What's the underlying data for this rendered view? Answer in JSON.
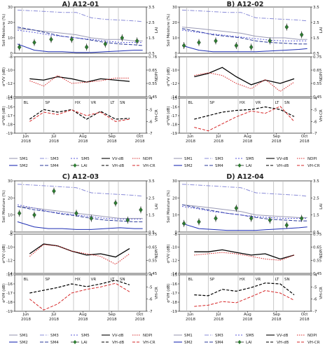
{
  "figure": {
    "y_axis_labels": {
      "moisture_left": "Soil Moisture (%)",
      "moisture_right": "LAI",
      "vv_left": "σ°VV (dB)",
      "vv_right": "NDPI",
      "vh_left": "σ°VH (dB)",
      "vh_right": "VH-CR"
    },
    "x_tick_labels": [
      "Jun\n2018",
      "Jul\n2018",
      "Aug\n2018",
      "Sep\n2018",
      "Oct\n2018"
    ],
    "stage_labels": [
      "BL",
      "SP",
      "HX",
      "VR",
      "LT",
      "SN"
    ],
    "legend_entries": {
      "moisture": [
        "SM1",
        "SM2",
        "SM3",
        "SM4",
        "SM5",
        "LAI"
      ],
      "backscatter": [
        "VV-dB",
        "VH-dB",
        "NDPI",
        "VH-CR"
      ]
    },
    "colors": {
      "sm1": "#9a9ab5",
      "sm2": "#1f2fb4",
      "sm3": "#8a8cd8",
      "sm4": "#2a3a9a",
      "sm5": "#5a5ad8",
      "lai_marker": "#2e7d32",
      "vv": "#000000",
      "vh": "#000000",
      "ndpi": "#d62728",
      "vhcr": "#d62728"
    }
  },
  "chart_data": [
    {
      "type": "line",
      "title": "A) A12-01",
      "x_date_ticks": [
        "2018-06-01",
        "2018-07-01",
        "2018-08-01",
        "2018-09-01",
        "2018-10-01"
      ],
      "stage_dates": [
        "2018-05-28",
        "2018-06-20",
        "2018-07-22",
        "2018-08-08",
        "2018-08-29",
        "2018-09-08"
      ],
      "moisture": {
        "ylim": [
          0,
          30
        ],
        "yticks": [
          0,
          10,
          20,
          30
        ],
        "y2lim": [
          0.5,
          3.5
        ],
        "y2ticks": [
          0.5,
          1.5,
          2.5,
          3.5
        ],
        "x": [
          "2018-05-23",
          "2018-06-10",
          "2018-06-25",
          "2018-07-10",
          "2018-07-25",
          "2018-08-10",
          "2018-08-25",
          "2018-09-10",
          "2018-09-25",
          "2018-10-04"
        ],
        "series": [
          {
            "name": "SM1",
            "values": [
              16,
              15,
              14,
              13,
              12,
              10,
              9,
              9,
              8,
              8
            ]
          },
          {
            "name": "SM2",
            "values": [
              6,
              2,
              1,
              1,
              0.5,
              0.5,
              1,
              1.5,
              2,
              2
            ]
          },
          {
            "name": "SM3",
            "values": [
              28,
              27.5,
              27,
              26.5,
              26.5,
              23,
              22,
              21.5,
              21,
              20.5
            ]
          },
          {
            "name": "SM4",
            "values": [
              17,
              15,
              13,
              11,
              10,
              8.5,
              7,
              6,
              5.5,
              5
            ]
          },
          {
            "name": "SM5",
            "values": [
              15,
              13.5,
              12,
              11,
              10,
              9,
              8,
              7,
              7,
              7
            ]
          }
        ],
        "lai": {
          "x": [
            "2018-05-25",
            "2018-06-10",
            "2018-06-28",
            "2018-07-20",
            "2018-08-05",
            "2018-08-25",
            "2018-09-12",
            "2018-09-28"
          ],
          "values": [
            0.9,
            1.2,
            1.4,
            1.4,
            0.9,
            1.1,
            1.5,
            1.3
          ]
        }
      },
      "vv": {
        "ylim": [
          -14,
          -8
        ],
        "yticks": [
          -14,
          -12,
          -10,
          -8
        ],
        "y2lim": [
          0.45,
          0.75
        ],
        "y2ticks": [
          0.45,
          0.55,
          0.65,
          0.75
        ],
        "x": [
          "2018-06-05",
          "2018-06-20",
          "2018-07-05",
          "2018-07-20",
          "2018-08-05",
          "2018-08-20",
          "2018-09-05",
          "2018-09-20"
        ],
        "vv_db": [
          -11.3,
          -11.5,
          -11.0,
          -11.3,
          -11.8,
          -11.3,
          -11.5,
          -11.7
        ],
        "ndpi": [
          0.57,
          0.53,
          0.61,
          0.55,
          0.56,
          0.57,
          0.59,
          0.59
        ]
      },
      "vh": {
        "ylim": [
          -19,
          -15
        ],
        "yticks": [
          -19,
          -18,
          -17,
          -16,
          -15
        ],
        "y2lim": [
          -7,
          -4
        ],
        "y2ticks": [
          -7,
          -6,
          -5,
          -4
        ],
        "x": [
          "2018-06-05",
          "2018-06-20",
          "2018-07-05",
          "2018-07-20",
          "2018-08-05",
          "2018-08-20",
          "2018-09-05",
          "2018-09-20"
        ],
        "vh_db": [
          -17.4,
          -16.3,
          -16.6,
          -16.3,
          -17.4,
          -16.5,
          -17.4,
          -17.3
        ],
        "vhcr": [
          -6.0,
          -5.2,
          -5.4,
          -5.0,
          -5.5,
          -5.2,
          -6.0,
          -5.8
        ]
      }
    },
    {
      "type": "line",
      "title": "B) A12-02",
      "x_date_ticks": [
        "2018-06-01",
        "2018-07-01",
        "2018-08-01",
        "2018-09-01",
        "2018-10-01"
      ],
      "stage_dates": [
        "2018-05-28",
        "2018-06-20",
        "2018-07-22",
        "2018-08-08",
        "2018-08-29",
        "2018-09-08"
      ],
      "moisture": {
        "ylim": [
          0,
          30
        ],
        "yticks": [
          0,
          10,
          20,
          30
        ],
        "y2lim": [
          0.5,
          3.5
        ],
        "y2ticks": [
          0.5,
          1.5,
          2.5,
          3.5
        ],
        "x": [
          "2018-05-23",
          "2018-06-10",
          "2018-06-25",
          "2018-07-10",
          "2018-07-25",
          "2018-08-10",
          "2018-08-25",
          "2018-09-10",
          "2018-09-25",
          "2018-10-04"
        ],
        "series": [
          {
            "name": "SM1",
            "values": [
              17,
              16,
              15,
              14,
              13,
              11,
              10,
              10,
              9,
              9
            ]
          },
          {
            "name": "SM2",
            "values": [
              5,
              2,
              1,
              1,
              1,
              1,
              1.5,
              2,
              2.5,
              3
            ]
          },
          {
            "name": "SM3",
            "values": [
              28,
              27.5,
              27,
              26.5,
              26.5,
              23,
              22.5,
              22,
              21.5,
              21
            ]
          },
          {
            "name": "SM4",
            "values": [
              16,
              14,
              12,
              11,
              10,
              8,
              7,
              6.5,
              6,
              6
            ]
          },
          {
            "name": "SM5",
            "values": [
              15,
              13.5,
              12.5,
              11.5,
              10.5,
              9.5,
              8.5,
              8,
              8,
              8
            ]
          }
        ],
        "lai": {
          "x": [
            "2018-05-25",
            "2018-06-10",
            "2018-06-28",
            "2018-07-20",
            "2018-08-05",
            "2018-08-25",
            "2018-09-12",
            "2018-09-28"
          ],
          "values": [
            1.0,
            1.2,
            1.3,
            1.0,
            0.9,
            1.3,
            2.2,
            1.7
          ]
        }
      },
      "vv": {
        "ylim": [
          -14,
          -8
        ],
        "yticks": [
          -14,
          -12,
          -10,
          -8
        ],
        "y2lim": [
          0.45,
          0.75
        ],
        "y2ticks": [
          0.45,
          0.55,
          0.65,
          0.75
        ],
        "x": [
          "2018-06-05",
          "2018-06-20",
          "2018-07-05",
          "2018-07-20",
          "2018-08-05",
          "2018-08-20",
          "2018-09-05",
          "2018-09-20"
        ],
        "vv_db": [
          -11.0,
          -10.5,
          -9.6,
          -11.0,
          -12.2,
          -11.5,
          -12.0,
          -11.3
        ],
        "ndpi": [
          0.61,
          0.63,
          0.61,
          0.55,
          0.51,
          0.58,
          0.49,
          0.56
        ]
      },
      "vh": {
        "ylim": [
          -19,
          -15
        ],
        "yticks": [
          -19,
          -18,
          -17,
          -16,
          -15
        ],
        "y2lim": [
          -7,
          -4
        ],
        "y2ticks": [
          -7,
          -6,
          -5,
          -4
        ],
        "x": [
          "2018-06-05",
          "2018-06-20",
          "2018-07-05",
          "2018-07-20",
          "2018-08-05",
          "2018-08-20",
          "2018-09-05",
          "2018-09-20"
        ],
        "vh_db": [
          -17.4,
          -17.0,
          -16.6,
          -16.4,
          -16.3,
          -16.0,
          -16.3,
          -17.1
        ],
        "vhcr": [
          -6.5,
          -6.8,
          -6.2,
          -5.6,
          -5.1,
          -5.3,
          -4.7,
          -6.0
        ]
      }
    },
    {
      "type": "line",
      "title": "C) A12-03",
      "x_date_ticks": [
        "2018-06-01",
        "2018-07-01",
        "2018-08-01",
        "2018-09-01",
        "2018-10-01"
      ],
      "stage_dates": [
        "2018-05-28",
        "2018-06-20",
        "2018-07-22",
        "2018-08-08",
        "2018-08-29",
        "2018-09-08"
      ],
      "moisture": {
        "ylim": [
          0,
          30
        ],
        "yticks": [
          0,
          10,
          20,
          30
        ],
        "y2lim": [
          0.5,
          3.5
        ],
        "y2ticks": [
          0.5,
          1.5,
          2.5,
          3.5
        ],
        "x": [
          "2018-05-23",
          "2018-06-10",
          "2018-06-25",
          "2018-07-10",
          "2018-07-25",
          "2018-08-10",
          "2018-08-25",
          "2018-09-10",
          "2018-09-25",
          "2018-10-04"
        ],
        "series": [
          {
            "name": "SM1",
            "values": [
              15,
              14,
              13,
              12,
              11,
              10,
              9,
              8,
              8,
              8
            ]
          },
          {
            "name": "SM2",
            "values": [
              6,
              3,
              2,
              2,
              1.5,
              1.5,
              2,
              2.5,
              2,
              2
            ]
          },
          {
            "name": "SM3",
            "values": [
              28,
              27.5,
              27,
              26.5,
              26,
              23,
              22.5,
              22,
              21.5,
              21
            ]
          },
          {
            "name": "SM4",
            "values": [
              15,
              13,
              12,
              10.5,
              9.5,
              8,
              7,
              6.5,
              6,
              6
            ]
          },
          {
            "name": "SM5",
            "values": [
              16,
              14,
              12,
              11,
              10,
              9,
              8,
              7.5,
              7.5,
              7.5
            ]
          }
        ],
        "lai": {
          "x": [
            "2018-05-25",
            "2018-06-10",
            "2018-07-01",
            "2018-07-25",
            "2018-08-10",
            "2018-09-05",
            "2018-09-18",
            "2018-10-02"
          ],
          "values": [
            1.6,
            1.5,
            2.9,
            1.6,
            1.3,
            2.2,
            1.2,
            1.8
          ]
        }
      },
      "vv": {
        "ylim": [
          -14,
          -8
        ],
        "yticks": [
          -14,
          -12,
          -10,
          -8
        ],
        "y2lim": [
          0.45,
          0.75
        ],
        "y2ticks": [
          0.45,
          0.55,
          0.65,
          0.75
        ],
        "x": [
          "2018-06-05",
          "2018-06-20",
          "2018-07-05",
          "2018-07-20",
          "2018-08-05",
          "2018-08-20",
          "2018-09-05",
          "2018-09-20"
        ],
        "vv_db": [
          -11.0,
          -9.5,
          -9.8,
          -10.6,
          -11.2,
          -11.0,
          -11.5,
          -10.2
        ],
        "ndpi": [
          0.58,
          0.67,
          0.66,
          0.62,
          0.6,
          0.58,
          0.52,
          0.6
        ]
      },
      "vh": {
        "ylim": [
          -19,
          -15
        ],
        "yticks": [
          -19,
          -18,
          -17,
          -16,
          -15
        ],
        "y2lim": [
          -7,
          -4
        ],
        "y2ticks": [
          -7,
          -6,
          -5,
          -4
        ],
        "x": [
          "2018-06-05",
          "2018-06-20",
          "2018-07-05",
          "2018-07-20",
          "2018-08-05",
          "2018-08-20",
          "2018-09-05",
          "2018-09-20"
        ],
        "vh_db": [
          -17.0,
          -16.7,
          -16.4,
          -16.0,
          -16.3,
          -16.0,
          -15.6,
          -16.1
        ],
        "vhcr": [
          -6.0,
          -6.9,
          -6.4,
          -5.5,
          -5.2,
          -5.0,
          -4.7,
          -5.4
        ]
      }
    },
    {
      "type": "line",
      "title": "D) A12-04",
      "x_date_ticks": [
        "2018-06-01",
        "2018-07-01",
        "2018-08-01",
        "2018-09-01",
        "2018-10-01"
      ],
      "stage_dates": [
        "2018-05-28",
        "2018-06-20",
        "2018-07-22",
        "2018-08-08",
        "2018-08-29",
        "2018-09-08"
      ],
      "moisture": {
        "ylim": [
          0,
          30
        ],
        "yticks": [
          0,
          10,
          20,
          30
        ],
        "y2lim": [
          0.5,
          3.5
        ],
        "y2ticks": [
          0.5,
          1.5,
          2.5,
          3.5
        ],
        "x": [
          "2018-05-23",
          "2018-06-10",
          "2018-06-25",
          "2018-07-10",
          "2018-07-25",
          "2018-08-10",
          "2018-08-25",
          "2018-09-10",
          "2018-09-25",
          "2018-10-04"
        ],
        "series": [
          {
            "name": "SM1",
            "values": [
              16,
              15,
              14,
              13,
              12,
              10,
              9.5,
              9,
              8.5,
              8.5
            ]
          },
          {
            "name": "SM2",
            "values": [
              5,
              2,
              1.5,
              1,
              1,
              1,
              1.5,
              2,
              2.5,
              3
            ]
          },
          {
            "name": "SM3",
            "values": [
              28,
              27.5,
              27,
              26.5,
              26,
              23,
              22.5,
              22,
              21.5,
              21
            ]
          },
          {
            "name": "SM4",
            "values": [
              16,
              14,
              12.5,
              11,
              10,
              8.5,
              7.5,
              7,
              6.5,
              6.5
            ]
          },
          {
            "name": "SM5",
            "values": [
              15,
              13.5,
              12,
              11,
              10,
              9,
              8.5,
              8,
              8,
              8
            ]
          }
        ],
        "lai": {
          "x": [
            "2018-05-25",
            "2018-06-10",
            "2018-06-28",
            "2018-07-20",
            "2018-08-05",
            "2018-08-25",
            "2018-09-12",
            "2018-09-28"
          ],
          "values": [
            1.0,
            1.1,
            1.3,
            1.9,
            1.3,
            1.2,
            0.9,
            1.3
          ]
        }
      },
      "vv": {
        "ylim": [
          -14,
          -8
        ],
        "yticks": [
          -14,
          -12,
          -10,
          -8
        ],
        "y2lim": [
          0.45,
          0.75
        ],
        "y2ticks": [
          0.45,
          0.55,
          0.65,
          0.75
        ],
        "x": [
          "2018-06-05",
          "2018-06-20",
          "2018-07-05",
          "2018-07-20",
          "2018-08-05",
          "2018-08-20",
          "2018-09-05",
          "2018-09-20"
        ],
        "vv_db": [
          -10.7,
          -10.7,
          -10.4,
          -10.8,
          -11.2,
          -11.0,
          -11.8,
          -11.2
        ],
        "ndpi": [
          0.59,
          0.6,
          0.61,
          0.6,
          0.58,
          0.56,
          0.55,
          0.59
        ]
      },
      "vh": {
        "ylim": [
          -19,
          -15
        ],
        "yticks": [
          -19,
          -18,
          -17,
          -16,
          -15
        ],
        "y2lim": [
          -7,
          -4
        ],
        "y2ticks": [
          -7,
          -6,
          -5,
          -4
        ],
        "x": [
          "2018-06-05",
          "2018-06-20",
          "2018-07-05",
          "2018-07-20",
          "2018-08-05",
          "2018-08-20",
          "2018-09-05",
          "2018-09-20"
        ],
        "vh_db": [
          -17.2,
          -17.3,
          -16.6,
          -16.8,
          -16.4,
          -15.9,
          -16.0,
          -17.2
        ],
        "vhcr": [
          -6.6,
          -6.5,
          -6.2,
          -6.3,
          -5.8,
          -5.3,
          -5.5,
          -6.1
        ]
      }
    }
  ]
}
